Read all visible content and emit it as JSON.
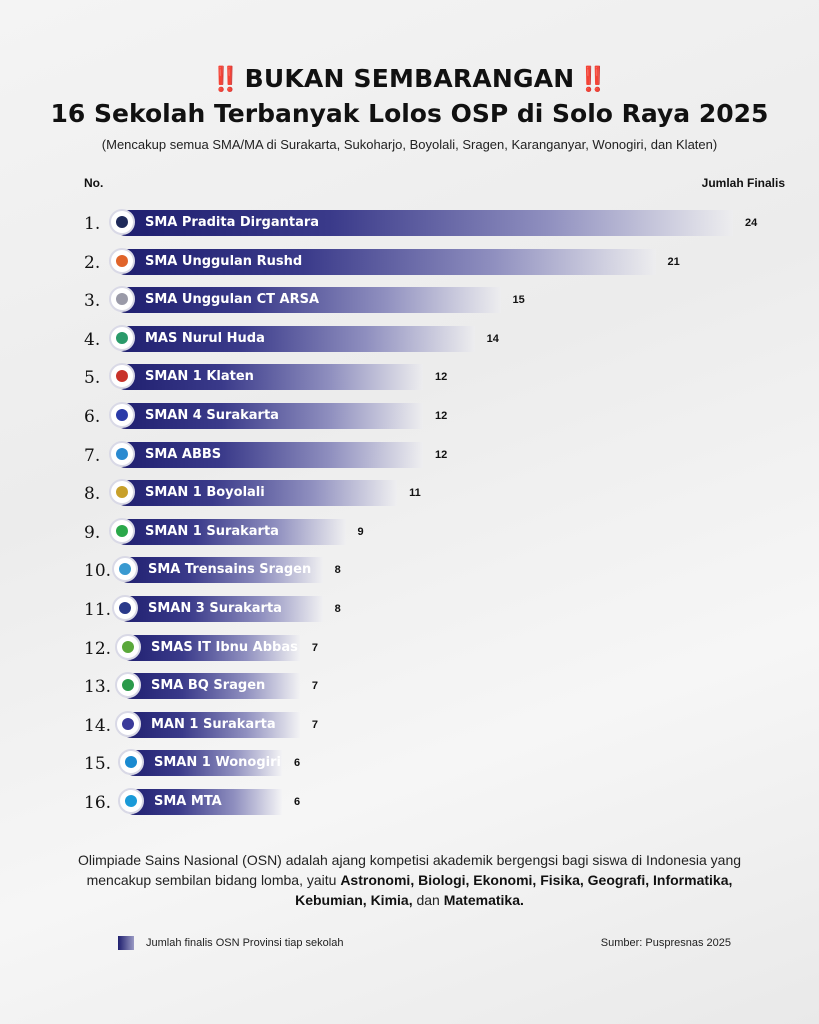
{
  "header": {
    "bang_left": "‼️",
    "headline": "BUKAN SEMBARANGAN",
    "bang_right": "‼️",
    "title": "16 Sekolah Terbanyak Lolos OSP di Solo Raya 2025",
    "subtitle": "(Mencakup semua SMA/MA di Surakarta, Sukoharjo, Boyolali, Sragen, Karanganyar, Wonogiri, dan Klaten)"
  },
  "columns": {
    "no": "No.",
    "value": "Jumlah Finalis"
  },
  "chart_data": {
    "type": "bar",
    "orientation": "horizontal",
    "title": "16 Sekolah Terbanyak Lolos OSP di Solo Raya 2025",
    "xlabel": "Jumlah Finalis",
    "ylabel": "No.",
    "xlim": [
      0,
      24
    ],
    "grid": false,
    "legend_position": "bottom-left",
    "series": [
      {
        "name": "Jumlah finalis OSN Provinsi tiap sekolah"
      }
    ],
    "rows": [
      {
        "rank": "1.",
        "label": "SMA Pradita Dirgantara",
        "value": 24,
        "logo_color": "#1f2a5a"
      },
      {
        "rank": "2.",
        "label": "SMA Unggulan Rushd",
        "value": 21,
        "logo_color": "#e0642a"
      },
      {
        "rank": "3.",
        "label": "SMA Unggulan CT ARSA",
        "value": 15,
        "logo_color": "#9a9aa8"
      },
      {
        "rank": "4.",
        "label": "MAS Nurul Huda",
        "value": 14,
        "logo_color": "#2a9a6a"
      },
      {
        "rank": "5.",
        "label": "SMAN 1 Klaten",
        "value": 12,
        "logo_color": "#c8322a"
      },
      {
        "rank": "6.",
        "label": "SMAN 4 Surakarta",
        "value": 12,
        "logo_color": "#2a3aa8"
      },
      {
        "rank": "7.",
        "label": "SMA ABBS",
        "value": 12,
        "logo_color": "#2a8ad0"
      },
      {
        "rank": "8.",
        "label": "SMAN 1 Boyolali",
        "value": 11,
        "logo_color": "#c8a02a"
      },
      {
        "rank": "9.",
        "label": "SMAN 1 Surakarta",
        "value": 9,
        "logo_color": "#2aa84a"
      },
      {
        "rank": "10.",
        "label": "SMA Trensains Sragen",
        "value": 8,
        "logo_color": "#3a9ad0"
      },
      {
        "rank": "11.",
        "label": "SMAN 3 Surakarta",
        "value": 8,
        "logo_color": "#2a3a8a"
      },
      {
        "rank": "12.",
        "label": "SMAS IT Ibnu Abbas",
        "value": 7,
        "logo_color": "#5aa83a"
      },
      {
        "rank": "13.",
        "label": "SMA BQ Sragen",
        "value": 7,
        "logo_color": "#2a9a4a"
      },
      {
        "rank": "14.",
        "label": "MAN 1 Surakarta",
        "value": 7,
        "logo_color": "#3a3a9a"
      },
      {
        "rank": "15.",
        "label": "SMAN 1 Wonogiri",
        "value": 6,
        "logo_color": "#1a8ad0"
      },
      {
        "rank": "16.",
        "label": "SMA MTA",
        "value": 6,
        "logo_color": "#1a9ad8"
      }
    ]
  },
  "description": {
    "text1": "Olimpiade Sains Nasional (OSN) adalah ajang kompetisi akademik bergengsi bagi siswa di Indonesia yang mencakup sembilan bidang lomba, yaitu ",
    "fields": "Astronomi, Biologi, Ekonomi, Fisika, Geografi, Informatika, Kebumian, Kimia,",
    "text2": " dan ",
    "last_field": "Matematika."
  },
  "footer": {
    "legend_label": "Jumlah finalis OSN Provinsi tiap sekolah",
    "source": "Sumber: Puspresnas 2025"
  },
  "colors": {
    "bar_dark": "#1e1e6e",
    "bar_light": "#9a9ac4",
    "accent": "#e01b1b"
  }
}
